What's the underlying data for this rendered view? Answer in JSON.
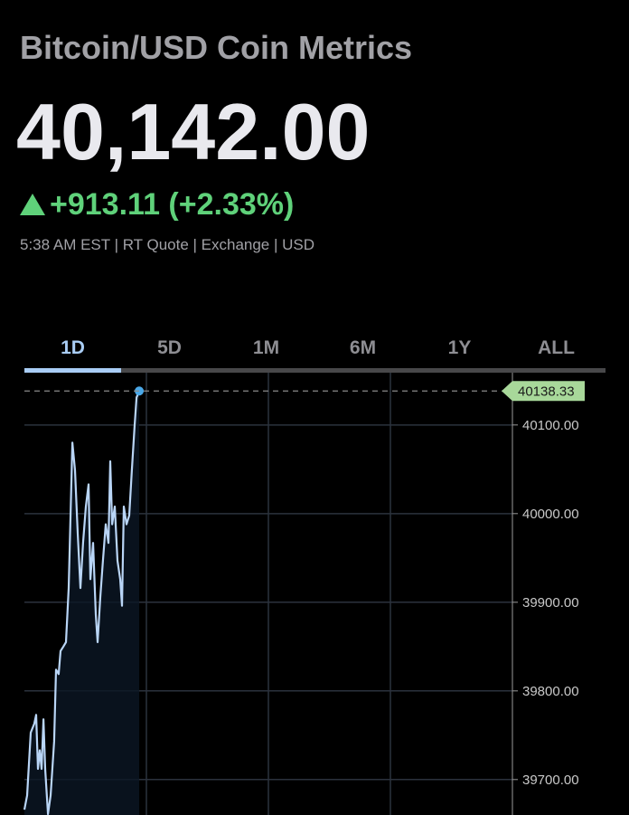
{
  "header": {
    "title": "Bitcoin/USD Coin Metrics",
    "price": "40,142.00",
    "change": "+913.11 (+2.33%)",
    "meta": "5:38 AM EST | RT Quote | Exchange | USD"
  },
  "tabs": [
    "1D",
    "5D",
    "1M",
    "6M",
    "1Y",
    "ALL"
  ],
  "selected_tab": 0,
  "chart_data": {
    "type": "line",
    "x": [
      0,
      0.022,
      0.052,
      0.081,
      0.096,
      0.111,
      0.126,
      0.141,
      0.156,
      0.17,
      0.193,
      0.215,
      0.244,
      0.259,
      0.281,
      0.296,
      0.319,
      0.341,
      0.363,
      0.393,
      0.415,
      0.437,
      0.459,
      0.481,
      0.504,
      0.526,
      0.541,
      0.563,
      0.585,
      0.6,
      0.622,
      0.644,
      0.667,
      0.689,
      0.704,
      0.719,
      0.741,
      0.763,
      0.785,
      0.8,
      0.815,
      0.837,
      0.859,
      0.881,
      0.904,
      0.919,
      0.941
    ],
    "values": [
      39666,
      39682,
      39753,
      39763,
      39773,
      39712,
      39733,
      39712,
      39768,
      39712,
      39661,
      39682,
      39743,
      39824,
      39819,
      39845,
      39850,
      39855,
      39916,
      40080,
      40049,
      39978,
      39916,
      39967,
      40008,
      40033,
      39926,
      39967,
      39886,
      39855,
      39906,
      39947,
      39988,
      39967,
      40059,
      39988,
      40008,
      39947,
      39926,
      39896,
      40008,
      39988,
      39998,
      40049,
      40100,
      40131,
      40138.33
    ],
    "color": "#b9d5f6",
    "xlim": [
      0,
      4
    ],
    "xticks": [
      1,
      2,
      3
    ],
    "ylim": [
      39660,
      40159
    ],
    "yticks": [
      {
        "value": 39700,
        "label": "39700.00"
      },
      {
        "value": 39800,
        "label": "39800.00"
      },
      {
        "value": 39900,
        "label": "39900.00"
      },
      {
        "value": 40000,
        "label": "40000.00"
      },
      {
        "value": 40100,
        "label": "40100.00"
      }
    ],
    "last_value": 40138.33,
    "grid": true
  }
}
